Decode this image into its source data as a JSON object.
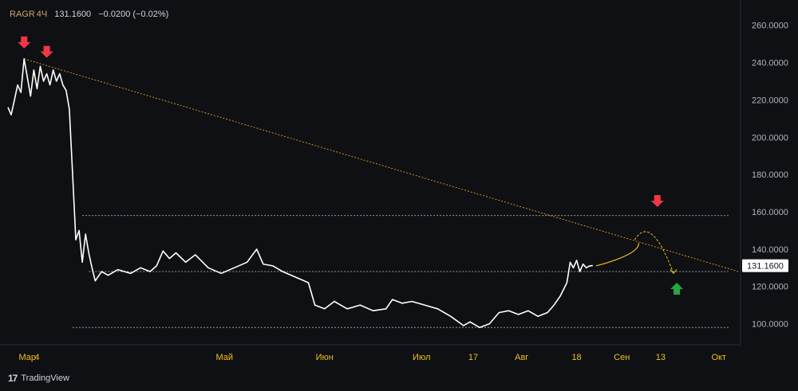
{
  "header": {
    "symbol": "RAGR",
    "interval": "4Ч",
    "price": "131.1600",
    "change": "−0.0200 (−0.02%)"
  },
  "brand": {
    "name": "TradingView",
    "logo_icon": "tradingview-logo-icon"
  },
  "colors": {
    "background": "#0f1013",
    "price_line": "#ffffff",
    "trendline": "#d38a1c",
    "level_line": "#9598a1",
    "forecast_arrow": "#f0c020",
    "sell_arrow": "#f23645",
    "buy_arrow": "#26a643",
    "axis_text": "#b2b5be"
  },
  "chart_data": {
    "type": "line",
    "y_axis": {
      "min": 90,
      "max": 265,
      "ticks": [
        "100.0000",
        "120.0000",
        "140.0000",
        "160.0000",
        "180.0000",
        "200.0000",
        "220.0000",
        "240.0000",
        "260.0000"
      ],
      "tick_values": [
        100,
        120,
        140,
        160,
        180,
        200,
        220,
        240,
        260
      ]
    },
    "x_axis": {
      "range": [
        "2024-02-24",
        "2024-10-07"
      ],
      "ticks": [
        {
          "label": "Мар",
          "date": "2024-03-01"
        },
        {
          "label": "4",
          "date": "2024-03-04"
        },
        {
          "label": "Май",
          "date": "2024-05-01"
        },
        {
          "label": "Июн",
          "date": "2024-06-01"
        },
        {
          "label": "Июл",
          "date": "2024-07-01"
        },
        {
          "label": "17",
          "date": "2024-07-17"
        },
        {
          "label": "Авг",
          "date": "2024-08-01"
        },
        {
          "label": "18",
          "date": "2024-08-18"
        },
        {
          "label": "Сен",
          "date": "2024-09-01"
        },
        {
          "label": "13",
          "date": "2024-09-13"
        },
        {
          "label": "Окт",
          "date": "2024-10-01"
        }
      ]
    },
    "last_price": {
      "value": 131.16,
      "label": "131.1600"
    },
    "series": [
      {
        "points": [
          [
            "2024-02-24",
            216
          ],
          [
            "2024-02-25",
            212
          ],
          [
            "2024-02-26",
            220
          ],
          [
            "2024-02-27",
            228
          ],
          [
            "2024-02-28",
            224
          ],
          [
            "2024-02-29",
            242
          ],
          [
            "2024-03-01",
            232
          ],
          [
            "2024-03-02",
            222
          ],
          [
            "2024-03-03",
            236
          ],
          [
            "2024-03-04",
            226
          ],
          [
            "2024-03-05",
            238
          ],
          [
            "2024-03-06",
            230
          ],
          [
            "2024-03-07",
            234
          ],
          [
            "2024-03-08",
            228
          ],
          [
            "2024-03-09",
            236
          ],
          [
            "2024-03-10",
            230
          ],
          [
            "2024-03-11",
            234
          ],
          [
            "2024-03-12",
            228
          ],
          [
            "2024-03-13",
            225
          ],
          [
            "2024-03-14",
            215
          ],
          [
            "2024-03-15",
            180
          ],
          [
            "2024-03-16",
            145
          ],
          [
            "2024-03-17",
            150
          ],
          [
            "2024-03-18",
            133
          ],
          [
            "2024-03-19",
            148
          ],
          [
            "2024-03-20",
            138
          ],
          [
            "2024-03-21",
            130
          ],
          [
            "2024-03-22",
            123
          ],
          [
            "2024-03-24",
            128
          ],
          [
            "2024-03-26",
            126
          ],
          [
            "2024-03-29",
            129
          ],
          [
            "2024-04-02",
            127
          ],
          [
            "2024-04-05",
            130
          ],
          [
            "2024-04-08",
            128
          ],
          [
            "2024-04-10",
            131
          ],
          [
            "2024-04-12",
            139
          ],
          [
            "2024-04-14",
            135
          ],
          [
            "2024-04-16",
            138
          ],
          [
            "2024-04-19",
            133
          ],
          [
            "2024-04-22",
            137
          ],
          [
            "2024-04-26",
            130
          ],
          [
            "2024-04-30",
            127
          ],
          [
            "2024-05-04",
            130
          ],
          [
            "2024-05-08",
            133
          ],
          [
            "2024-05-11",
            140
          ],
          [
            "2024-05-13",
            132
          ],
          [
            "2024-05-16",
            131
          ],
          [
            "2024-05-19",
            128
          ],
          [
            "2024-05-23",
            125
          ],
          [
            "2024-05-27",
            122
          ],
          [
            "2024-05-29",
            110
          ],
          [
            "2024-06-01",
            108
          ],
          [
            "2024-06-04",
            112
          ],
          [
            "2024-06-08",
            108
          ],
          [
            "2024-06-12",
            110
          ],
          [
            "2024-06-16",
            107
          ],
          [
            "2024-06-20",
            108
          ],
          [
            "2024-06-22",
            113
          ],
          [
            "2024-06-25",
            111
          ],
          [
            "2024-06-28",
            112
          ],
          [
            "2024-07-02",
            110
          ],
          [
            "2024-07-06",
            108
          ],
          [
            "2024-07-10",
            104
          ],
          [
            "2024-07-14",
            99
          ],
          [
            "2024-07-16",
            101
          ],
          [
            "2024-07-19",
            98
          ],
          [
            "2024-07-22",
            100
          ],
          [
            "2024-07-25",
            106
          ],
          [
            "2024-07-28",
            107
          ],
          [
            "2024-07-31",
            105
          ],
          [
            "2024-08-03",
            107
          ],
          [
            "2024-08-06",
            104
          ],
          [
            "2024-08-09",
            106
          ],
          [
            "2024-08-11",
            110
          ],
          [
            "2024-08-13",
            115
          ],
          [
            "2024-08-15",
            122
          ],
          [
            "2024-08-16",
            133
          ],
          [
            "2024-08-17",
            130
          ],
          [
            "2024-08-18",
            134
          ],
          [
            "2024-08-19",
            128
          ],
          [
            "2024-08-20",
            132
          ],
          [
            "2024-08-21",
            130
          ],
          [
            "2024-08-22",
            131
          ],
          [
            "2024-08-23",
            131.16
          ]
        ]
      }
    ],
    "annotations": {
      "trendline": {
        "from": [
          "2024-02-29",
          242
        ],
        "to": [
          "2024-10-07",
          128
        ]
      },
      "levels": [
        {
          "value": 158,
          "from": "2024-03-18",
          "to": "2024-10-04"
        },
        {
          "value": 128,
          "from": "2024-03-20",
          "to": "2024-10-04"
        },
        {
          "value": 98,
          "from": "2024-03-15",
          "to": "2024-10-04"
        }
      ],
      "sell_markers": [
        {
          "date": "2024-02-29",
          "value": 242
        },
        {
          "date": "2024-03-07",
          "value": 237
        },
        {
          "date": "2024-09-12",
          "value": 157
        }
      ],
      "buy_markers": [
        {
          "date": "2024-09-18",
          "value": 122
        }
      ],
      "forecast_path": [
        [
          "2024-08-24",
          131
        ],
        [
          "2024-09-04",
          139
        ],
        [
          "2024-09-10",
          155
        ],
        [
          "2024-09-17",
          127
        ]
      ]
    }
  }
}
